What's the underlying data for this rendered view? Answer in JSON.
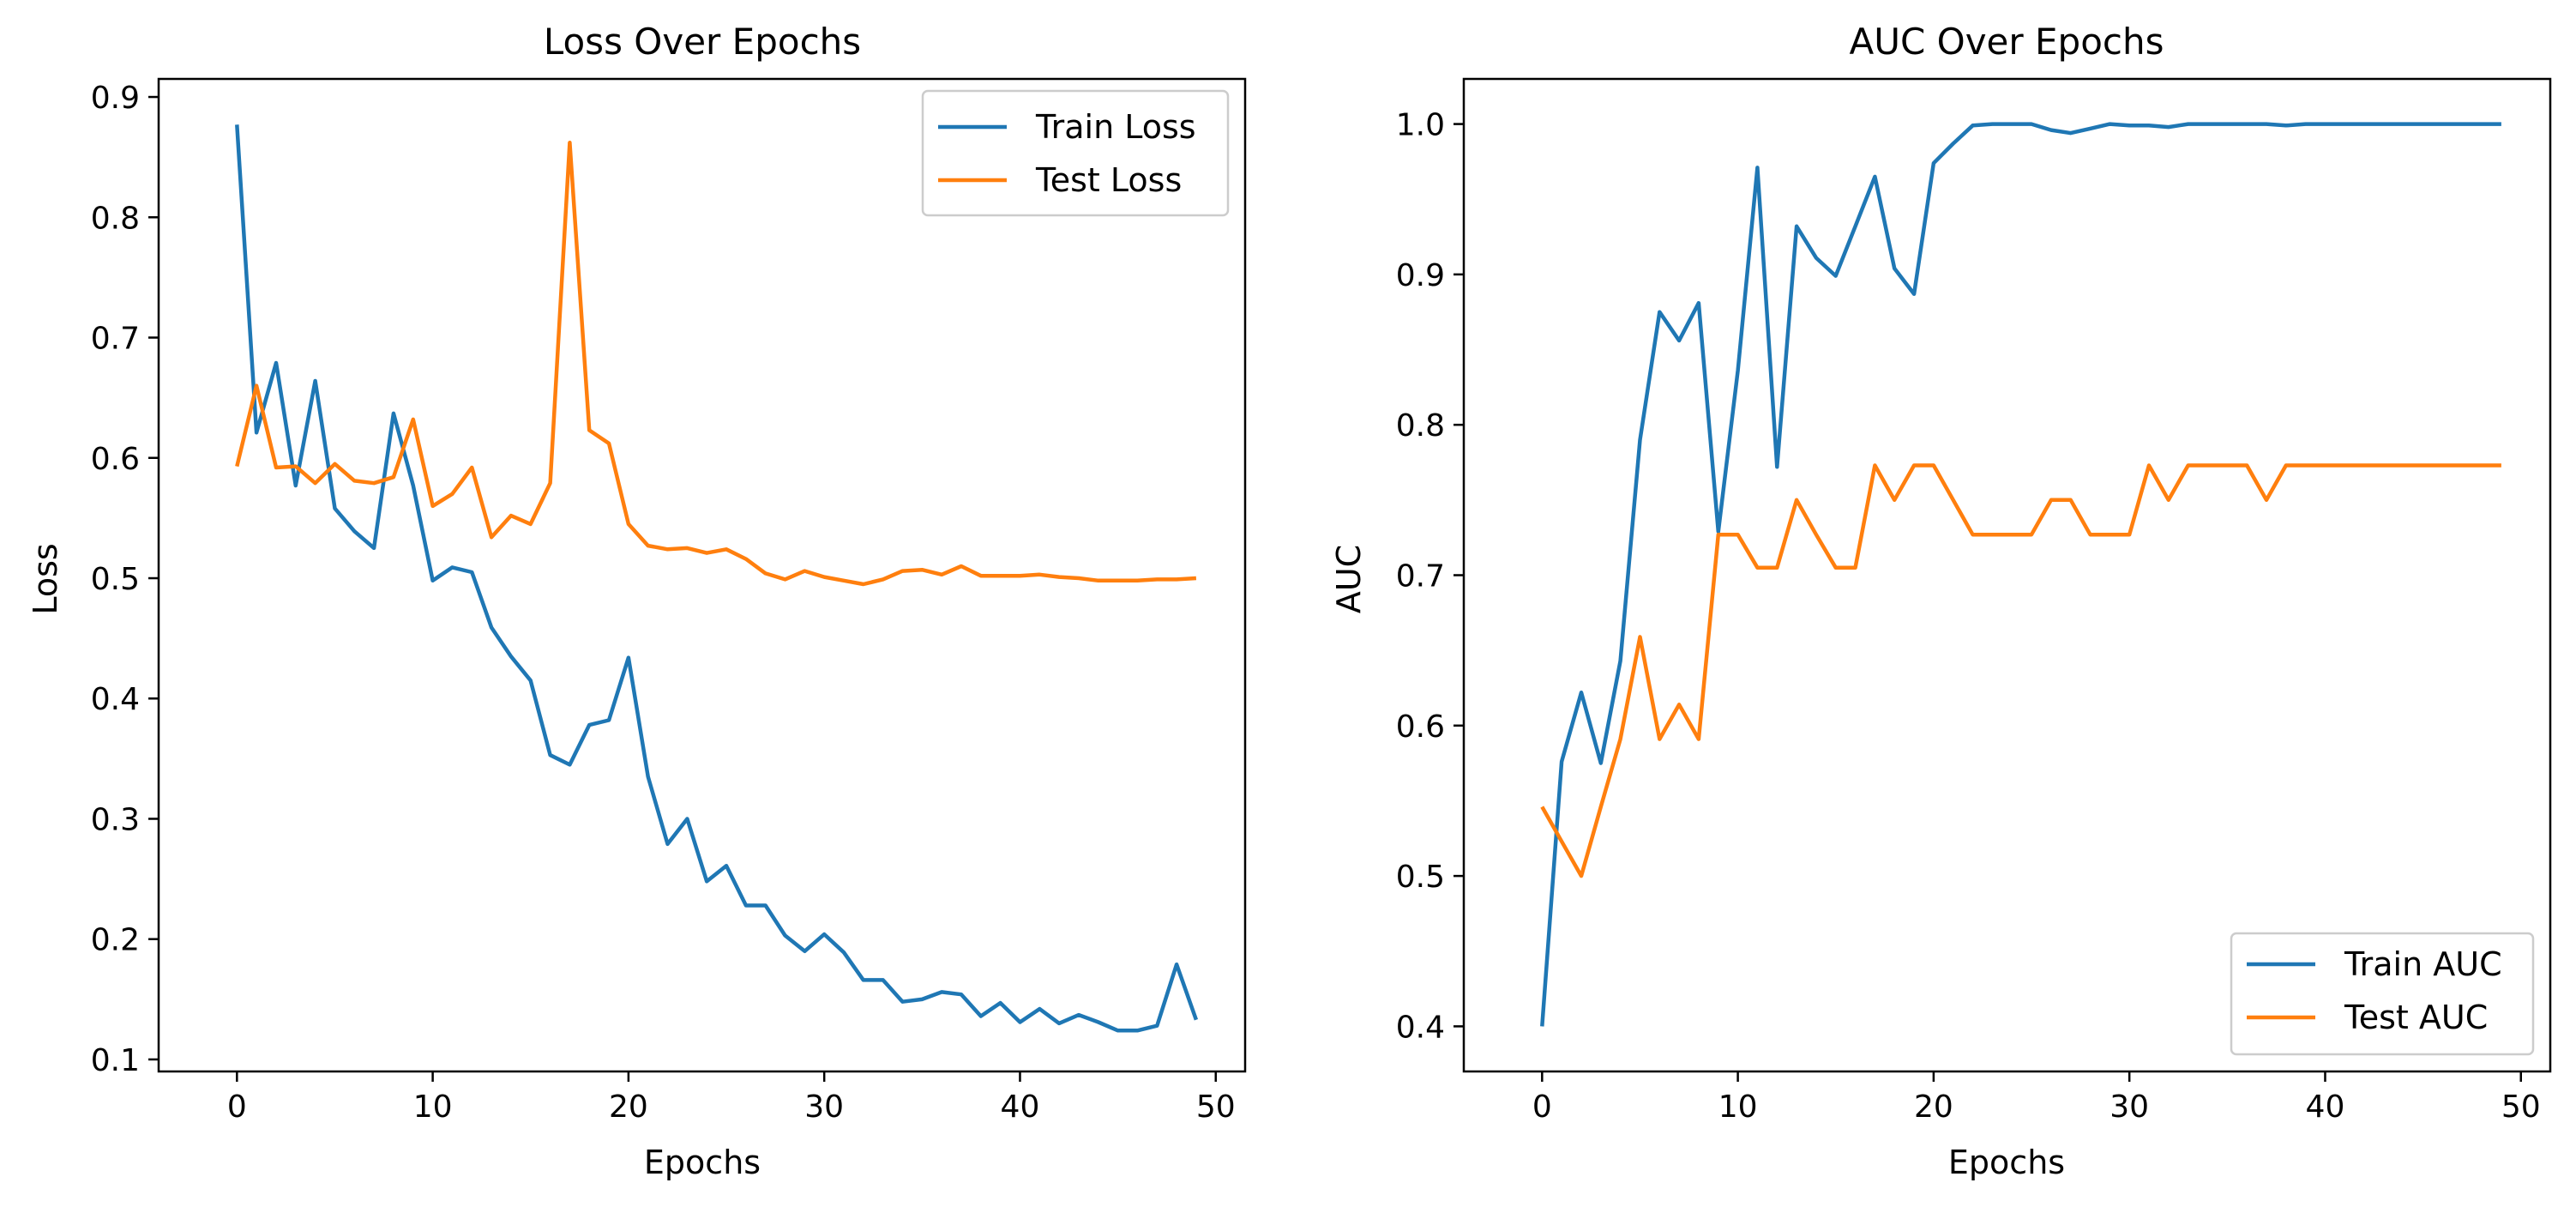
{
  "chart_data": [
    {
      "type": "line",
      "title": "Loss Over Epochs",
      "xlabel": "Epochs",
      "ylabel": "Loss",
      "xlim": [
        -4,
        51.5
      ],
      "ylim": [
        0.09,
        0.915
      ],
      "xticks": [
        0,
        10,
        20,
        30,
        40,
        50
      ],
      "yticks": [
        0.1,
        0.2,
        0.3,
        0.4,
        0.5,
        0.6,
        0.7,
        0.8,
        0.9
      ],
      "xtick_labels": [
        "0",
        "10",
        "20",
        "30",
        "40",
        "50"
      ],
      "ytick_labels": [
        "0.1",
        "0.2",
        "0.3",
        "0.4",
        "0.5",
        "0.6",
        "0.7",
        "0.8",
        "0.9"
      ],
      "legend_position": "top-right",
      "grid": false,
      "x": [
        0,
        1,
        2,
        3,
        4,
        5,
        6,
        7,
        8,
        9,
        10,
        11,
        12,
        13,
        14,
        15,
        16,
        17,
        18,
        19,
        20,
        21,
        22,
        23,
        24,
        25,
        26,
        27,
        28,
        29,
        30,
        31,
        32,
        33,
        34,
        35,
        36,
        37,
        38,
        39,
        40,
        41,
        42,
        43,
        44,
        45,
        46,
        47,
        48,
        49
      ],
      "series": [
        {
          "name": "Train Loss",
          "color": "#1f77b4",
          "values": [
            0.877,
            0.621,
            0.679,
            0.577,
            0.664,
            0.558,
            0.539,
            0.525,
            0.637,
            0.577,
            0.498,
            0.509,
            0.505,
            0.459,
            0.435,
            0.415,
            0.353,
            0.345,
            0.378,
            0.382,
            0.434,
            0.335,
            0.279,
            0.3,
            0.248,
            0.261,
            0.228,
            0.228,
            0.203,
            0.19,
            0.204,
            0.189,
            0.166,
            0.166,
            0.148,
            0.15,
            0.156,
            0.154,
            0.136,
            0.147,
            0.131,
            0.142,
            0.13,
            0.137,
            0.131,
            0.124,
            0.124,
            0.128,
            0.179,
            0.133
          ]
        },
        {
          "name": "Test Loss",
          "color": "#ff7f0e",
          "values": [
            0.593,
            0.66,
            0.592,
            0.593,
            0.579,
            0.595,
            0.581,
            0.579,
            0.584,
            0.632,
            0.56,
            0.57,
            0.592,
            0.534,
            0.552,
            0.545,
            0.579,
            0.862,
            0.623,
            0.612,
            0.545,
            0.527,
            0.524,
            0.525,
            0.521,
            0.524,
            0.516,
            0.504,
            0.499,
            0.506,
            0.501,
            0.498,
            0.495,
            0.499,
            0.506,
            0.507,
            0.503,
            0.51,
            0.502,
            0.502,
            0.502,
            0.503,
            0.501,
            0.5,
            0.498,
            0.498,
            0.498,
            0.499,
            0.499,
            0.5
          ]
        }
      ]
    },
    {
      "type": "line",
      "title": "AUC Over Epochs",
      "xlabel": "Epochs",
      "ylabel": "AUC",
      "xlim": [
        -4,
        51.5
      ],
      "ylim": [
        0.37,
        1.03
      ],
      "xticks": [
        0,
        10,
        20,
        30,
        40,
        50
      ],
      "yticks": [
        0.4,
        0.5,
        0.6,
        0.7,
        0.8,
        0.9,
        1.0
      ],
      "xtick_labels": [
        "0",
        "10",
        "20",
        "30",
        "40",
        "50"
      ],
      "ytick_labels": [
        "0.4",
        "0.5",
        "0.6",
        "0.7",
        "0.8",
        "0.9",
        "1.0"
      ],
      "legend_position": "bottom-right",
      "grid": false,
      "x": [
        0,
        1,
        2,
        3,
        4,
        5,
        6,
        7,
        8,
        9,
        10,
        11,
        12,
        13,
        14,
        15,
        16,
        17,
        18,
        19,
        20,
        21,
        22,
        23,
        24,
        25,
        26,
        27,
        28,
        29,
        30,
        31,
        32,
        33,
        34,
        35,
        36,
        37,
        38,
        39,
        40,
        41,
        42,
        43,
        44,
        45,
        46,
        47,
        48,
        49
      ],
      "series": [
        {
          "name": "Train AUC",
          "color": "#1f77b4",
          "values": [
            0.4,
            0.576,
            0.622,
            0.575,
            0.643,
            0.79,
            0.875,
            0.856,
            0.881,
            0.729,
            0.836,
            0.971,
            0.772,
            0.932,
            0.911,
            0.899,
            0.932,
            0.965,
            0.904,
            0.887,
            0.974,
            0.987,
            0.999,
            1.0,
            1.0,
            1.0,
            0.996,
            0.994,
            0.997,
            1.0,
            0.999,
            0.999,
            0.998,
            1.0,
            1.0,
            1.0,
            1.0,
            1.0,
            0.999,
            1.0,
            1.0,
            1.0,
            1.0,
            1.0,
            1.0,
            1.0,
            1.0,
            1.0,
            1.0,
            1.0
          ]
        },
        {
          "name": "Test AUC",
          "color": "#ff7f0e",
          "values": [
            0.546,
            0.523,
            0.5,
            0.546,
            0.591,
            0.659,
            0.591,
            0.614,
            0.591,
            0.727,
            0.727,
            0.705,
            0.705,
            0.75,
            0.727,
            0.705,
            0.705,
            0.773,
            0.75,
            0.773,
            0.773,
            0.75,
            0.727,
            0.727,
            0.727,
            0.727,
            0.75,
            0.75,
            0.727,
            0.727,
            0.727,
            0.773,
            0.75,
            0.773,
            0.773,
            0.773,
            0.773,
            0.75,
            0.773,
            0.773,
            0.773,
            0.773,
            0.773,
            0.773,
            0.773,
            0.773,
            0.773,
            0.773,
            0.773,
            0.773
          ]
        }
      ]
    }
  ]
}
